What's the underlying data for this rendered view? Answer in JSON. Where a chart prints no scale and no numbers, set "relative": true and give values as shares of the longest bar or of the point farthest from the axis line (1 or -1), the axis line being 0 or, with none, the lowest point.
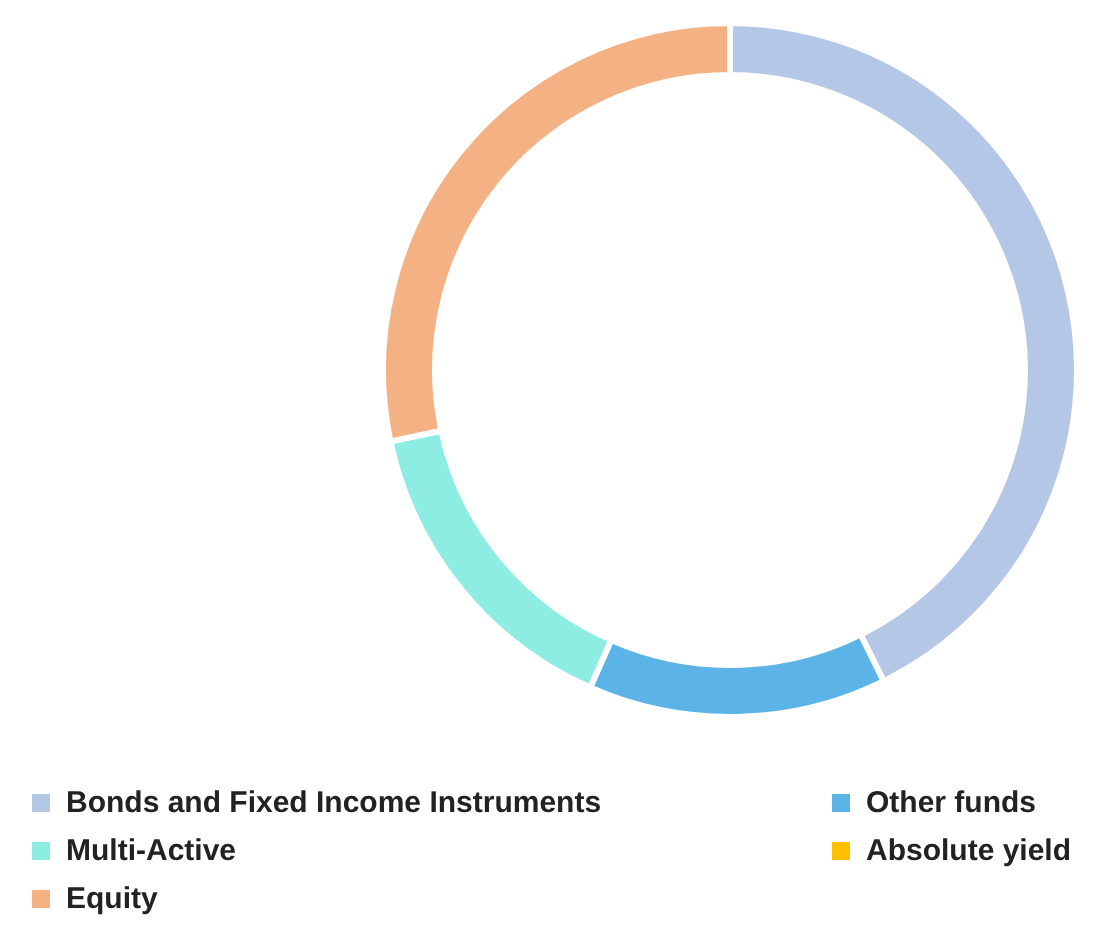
{
  "chart_data": {
    "type": "donut",
    "relative": true,
    "legend": "bottom",
    "categories": [
      "Bonds and Fixed Income Instruments",
      "Other funds",
      "Multi-Active",
      "Absolute yield",
      "Equity"
    ],
    "values": [
      42.7,
      13.9,
      15.1,
      0,
      28.3
    ],
    "colors": [
      "#b4c7e7",
      "#5bb3e8",
      "#8eede2",
      "#ffc000",
      "#f4b183"
    ]
  }
}
